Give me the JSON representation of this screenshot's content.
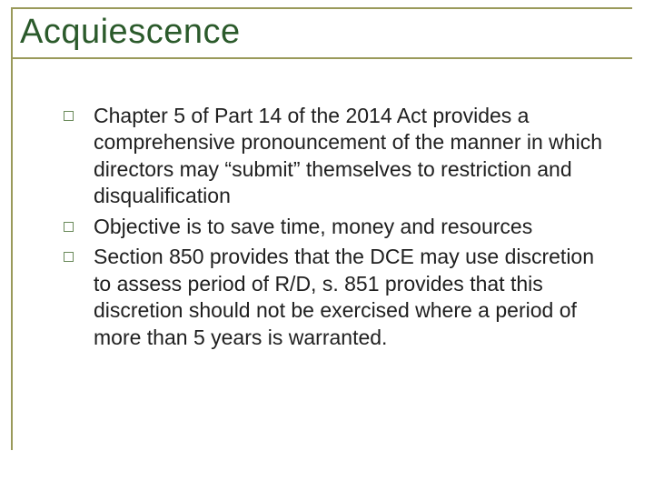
{
  "slide": {
    "title": "Acquiescence",
    "bullets": [
      "Chapter 5 of Part 14 of the 2014 Act provides a comprehensive pronouncement of the manner in which directors may “submit” themselves to restriction and disqualification",
      "Objective is to save time, money and resources",
      "Section 850 provides that the DCE may use discretion to assess period of R/D, s. 851 provides that this discretion should not be exercised where a period of more than 5 years is warranted."
    ]
  },
  "colors": {
    "title_color": "#2b5a2b",
    "line_color": "#9a9a5a",
    "bullet_border": "#6a8a5a",
    "text_color": "#202020",
    "background": "#ffffff"
  },
  "typography": {
    "title_fontsize": 38,
    "body_fontsize": 23,
    "font_family": "Arial"
  }
}
